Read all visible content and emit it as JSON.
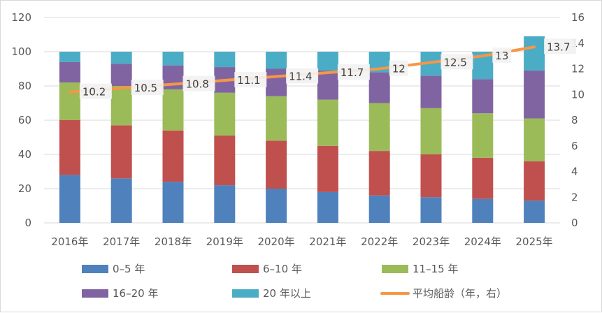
{
  "chart_data": {
    "type": "bar",
    "stacked": true,
    "categories": [
      "2016年",
      "2017年",
      "2018年",
      "2019年",
      "2020年",
      "2021年",
      "2022年",
      "2023年",
      "2024年",
      "2025年"
    ],
    "series": [
      {
        "name": "0–5 年",
        "color": "#4F81BD",
        "values": [
          28,
          26,
          24,
          22,
          20,
          18,
          16,
          15,
          14,
          13
        ]
      },
      {
        "name": "6–10 年",
        "color": "#C0504D",
        "values": [
          32,
          31,
          30,
          29,
          28,
          27,
          26,
          25,
          24,
          23
        ]
      },
      {
        "name": "11–15 年",
        "color": "#9BBB59",
        "values": [
          22,
          23,
          24,
          25,
          26,
          27,
          28,
          27,
          26,
          25
        ]
      },
      {
        "name": "16–20 年",
        "color": "#8064A2",
        "values": [
          12,
          13,
          14,
          15,
          16,
          17,
          18,
          19,
          20,
          28
        ]
      },
      {
        "name": "20 年以上",
        "color": "#4BACC6",
        "values": [
          6,
          7,
          8,
          9,
          10,
          11,
          12,
          14,
          16,
          20
        ]
      }
    ],
    "line_series": {
      "name": "平均船龄（年，右）",
      "color": "#F79646",
      "axis": "right",
      "values": [
        10.2,
        10.5,
        10.8,
        11.1,
        11.4,
        11.7,
        12,
        12.5,
        13,
        13.7
      ],
      "labels": [
        "10.2",
        "10.5",
        "10.8",
        "11.1",
        "11.4",
        "11.7",
        "12",
        "12.5",
        "13",
        "13.7"
      ]
    },
    "y_left": {
      "min": 0,
      "max": 120,
      "ticks": [
        "0",
        "20",
        "40",
        "60",
        "80",
        "100",
        "120"
      ]
    },
    "y_right": {
      "min": 0,
      "max": 16,
      "ticks": [
        "0",
        "2",
        "4",
        "6",
        "8",
        "10",
        "12",
        "14",
        "16"
      ]
    },
    "grid": true,
    "legend_position": "bottom"
  }
}
